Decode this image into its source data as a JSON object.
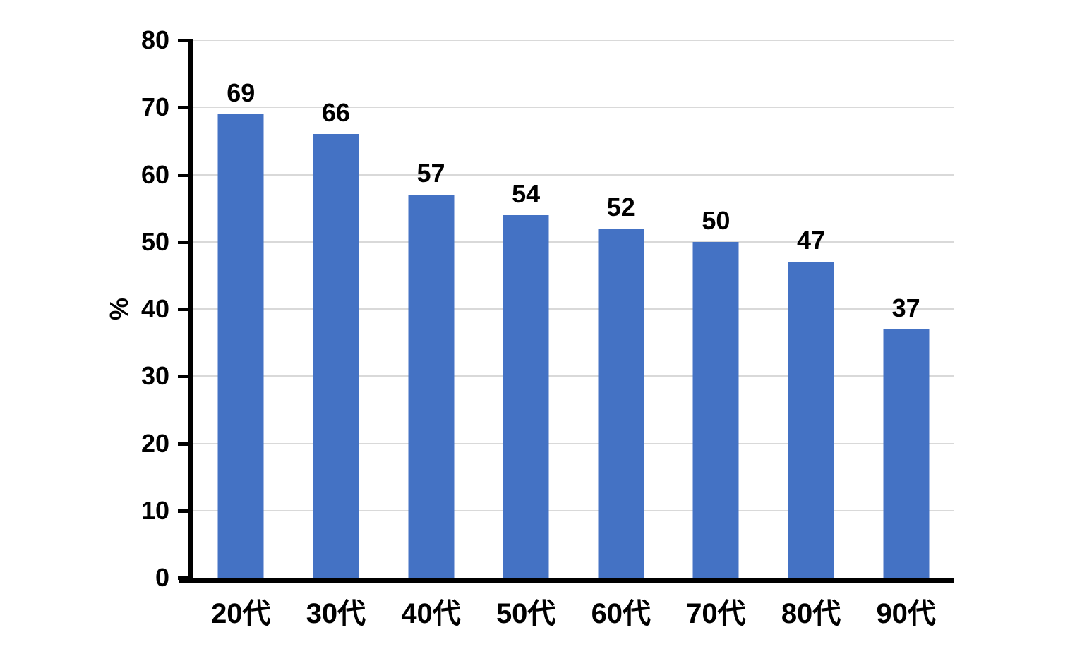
{
  "chart_data": {
    "type": "bar",
    "title": "",
    "xlabel": "",
    "ylabel": "%",
    "categories": [
      "20代",
      "30代",
      "40代",
      "50代",
      "60代",
      "70代",
      "80代",
      "90代"
    ],
    "values": [
      69,
      66,
      57,
      54,
      52,
      50,
      47,
      37
    ],
    "data_labels_shown": true,
    "ylim": [
      0,
      80
    ],
    "yticks": [
      0,
      10,
      20,
      30,
      40,
      50,
      60,
      70,
      80
    ],
    "grid": true,
    "legend": false,
    "colors": {
      "bar": "#4472C4",
      "gridline": "#D9D9D9",
      "axis": "#000000",
      "text": "#000000",
      "background": "#FFFFFF"
    }
  }
}
